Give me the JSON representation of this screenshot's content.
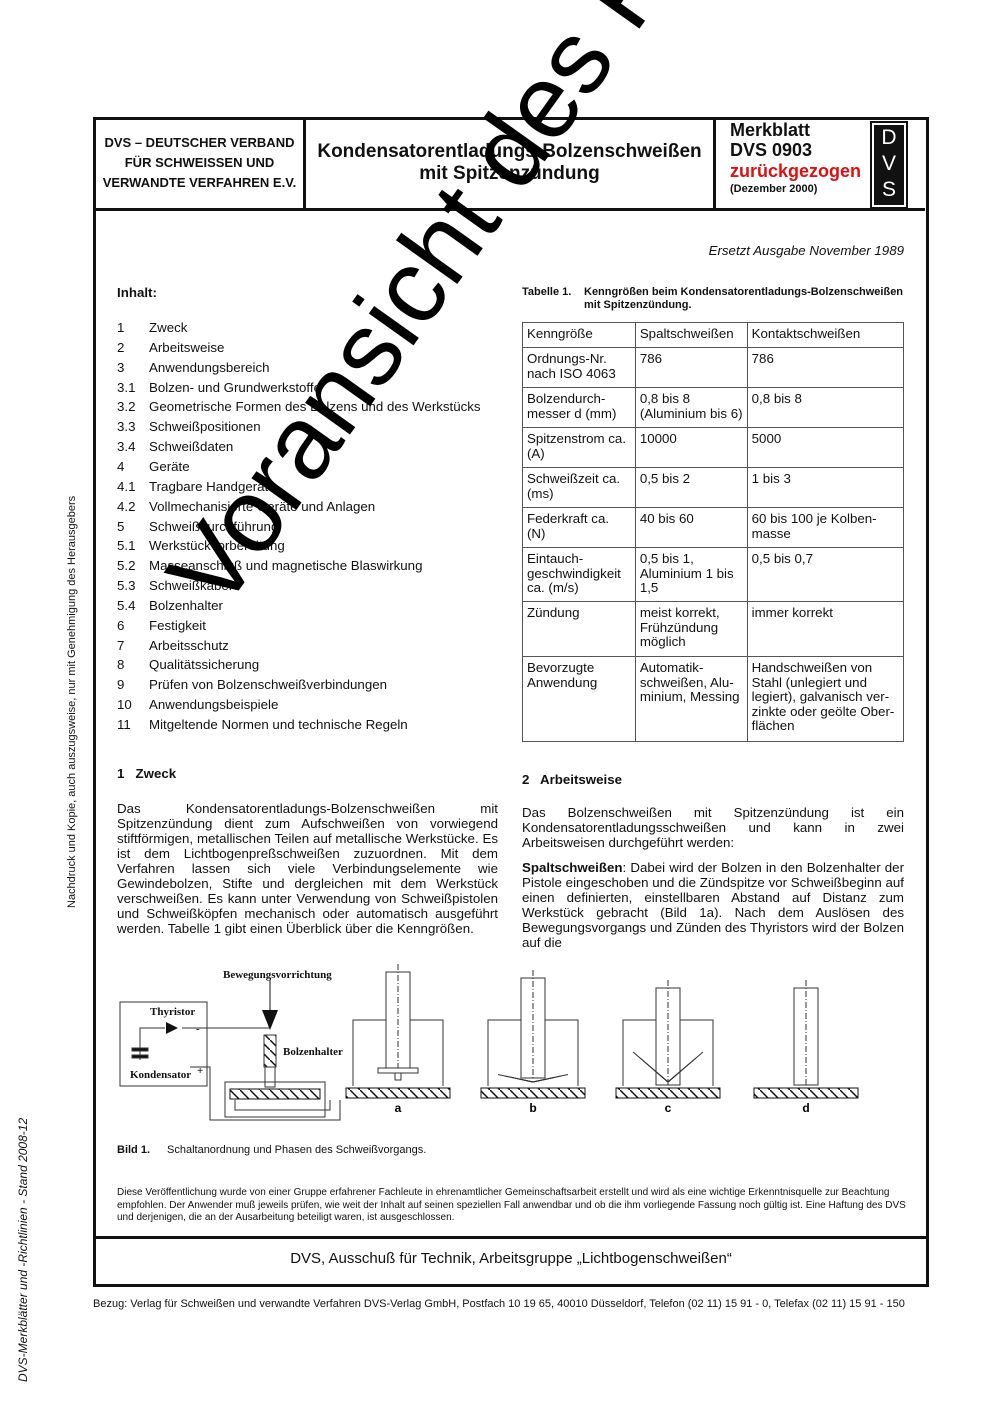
{
  "header": {
    "org": [
      "DVS – DEUTSCHER VERBAND",
      "FÜR SCHWEISSEN UND",
      "VERWANDTE VERFAHREN E.V."
    ],
    "title": [
      "Kondensatorentladungs-Bolzenschweißen",
      "mit Spitzenzündung"
    ],
    "merkblatt": "Merkblatt",
    "number": "DVS 0903",
    "date": "(Dezember 2000)",
    "stamp": "zurückgezogen",
    "logo": [
      "D",
      "V",
      "S"
    ],
    "stamp_color": "#e01010"
  },
  "replaces": "Ersetzt Ausgabe November 1989",
  "toc": {
    "title": "Inhalt:",
    "items": [
      {
        "num": "1",
        "label": "Zweck"
      },
      {
        "num": "2",
        "label": "Arbeitsweise"
      },
      {
        "num": "3",
        "label": "Anwendungsbereich"
      },
      {
        "num": "3.1",
        "label": "Bolzen- und Grundwerkstoffe"
      },
      {
        "num": "3.2",
        "label": "Geometrische Formen des Bolzens und des Werkstücks"
      },
      {
        "num": "3.3",
        "label": "Schweißpositionen"
      },
      {
        "num": "3.4",
        "label": "Schweißdaten"
      },
      {
        "num": "4",
        "label": "Geräte"
      },
      {
        "num": "4.1",
        "label": "Tragbare Handgeräte"
      },
      {
        "num": "4.2",
        "label": "Vollmechanisierte Geräte und Anlagen"
      },
      {
        "num": "5",
        "label": "Schweißdurchführung"
      },
      {
        "num": "5.1",
        "label": "Werkstückvorbereitung"
      },
      {
        "num": "5.2",
        "label": "Masseanschluß und magnetische Blaswirkung"
      },
      {
        "num": "5.3",
        "label": "Schweißkabel"
      },
      {
        "num": "5.4",
        "label": "Bolzenhalter"
      },
      {
        "num": "6",
        "label": "Festigkeit"
      },
      {
        "num": "7",
        "label": "Arbeitsschutz"
      },
      {
        "num": "8",
        "label": "Qualitätssicherung"
      },
      {
        "num": "9",
        "label": "Prüfen von Bolzenschweißverbindungen"
      },
      {
        "num": "10",
        "label": "Anwendungsbeispiele"
      },
      {
        "num": "11",
        "label": "Mitgeltende Normen und technische Regeln"
      }
    ]
  },
  "table": {
    "caption_label": "Tabelle 1.",
    "caption": "Kenngrößen beim Kondensatorentladungs-Bolzenschweißen mit Spitzenzündung.",
    "headers": [
      "Kenngröße",
      "Spaltschweißen",
      "Kontaktschweißen"
    ],
    "rows": [
      [
        "Ordnungs-Nr. nach ISO 4063",
        "786",
        "786"
      ],
      [
        "Bolzendurch­messer d (mm)",
        "0,8 bis 8 (Aluminium bis 6)",
        "0,8 bis 8"
      ],
      [
        "Spitzenstrom ca. (A)",
        "10000",
        "5000"
      ],
      [
        "Schweißzeit ca. (ms)",
        "0,5 bis 2",
        "1 bis 3"
      ],
      [
        "Federkraft ca. (N)",
        "40 bis 60",
        "60 bis 100 je Kolben­masse"
      ],
      [
        "Eintauch­geschwindigkeit ca. (m/s)",
        "0,5 bis 1, Aluminium 1 bis 1,5",
        "0,5 bis 0,7"
      ],
      [
        "Zündung",
        "meist korrekt, Frühzündung möglich",
        "immer korrekt"
      ],
      [
        "Bevorzugte Anwendung",
        "Automatik­schweißen, Alu­minium, Messing",
        "Handschweißen von Stahl (unlegiert und legiert), galvanisch ver­zinkte oder geölte Ober­flächen"
      ]
    ]
  },
  "section1": {
    "heading": "1   Zweck",
    "text": "Das Kondensatorentladungs-Bolzenschweißen mit Spitzenzündung dient zum Aufschweißen von vorwiegend stiftförmigen, metallischen Teilen auf metallische Werkstücke. Es ist dem Lichtbogenpreßschweißen zuzuordnen. Mit dem Verfahren lassen sich viele Verbindungselemente wie Gewindebolzen, Stifte und dergleichen mit dem Werkstück verschweißen. Es kann unter Verwendung von Schweißpistolen und Schweißköpfen mechanisch oder automatisch ausgeführt werden. Tabelle 1 gibt einen Überblick über die Kenngrößen."
  },
  "section2": {
    "heading": "2   Arbeitsweise",
    "text": "Das Bolzenschweißen mit Spitzenzündung ist ein Kondensatorentladungsschweißen und kann in zwei Arbeitsweisen durchgeführt werden:",
    "para_bold": "Spaltschweißen",
    "para": ": Dabei wird der Bolzen in den Bolzenhalter der Pistole eingeschoben und die Zündspitze vor Schweißbeginn auf einen definierten, einstellbaren Abstand auf Distanz zum Werkstück gebracht (Bild 1a). Nach dem Auslösen des Bewegungsvorgangs und Zünden des Thyristors wird der Bolzen auf die"
  },
  "figure": {
    "labels": {
      "motion": "Bewegungsvorrichtung",
      "thyristor": "Thyristor",
      "capacitor": "Kondensator",
      "holder": "Bolzenhalter",
      "minus": "-",
      "plus": "+"
    },
    "phases": [
      "a",
      "b",
      "c",
      "d"
    ],
    "caption_label": "Bild 1.",
    "caption": "Schaltanordnung und Phasen des Schweißvorgangs."
  },
  "disclaimer": "Diese Veröffentlichung wurde von einer Gruppe erfahrener Fachleute in ehrenamtlicher Gemeinschaftsarbeit erstellt und wird als eine wichtige Erkenntnisquelle zur Beachtung empfohlen. Der Anwender muß jeweils prüfen, wie weit der Inhalt auf seinen speziellen Fall anwendbar und ob die ihm vorliegende Fassung noch gültig ist. Eine Haftung des DVS und derjenigen, die an der Ausarbeitung beteiligt waren, ist ausgeschlossen.",
  "committee": "DVS, Ausschuß für Technik, Arbeitsgruppe „Lichtbogenschweißen“",
  "bezug": "Bezug:  Verlag für Schweißen und verwandte Verfahren DVS-Verlag  GmbH, Postfach 10 19 65, 40010 Düsseldorf, Telefon (02 11) 15 91 - 0, Telefax (02 11) 15 91 - 150",
  "side_copyright": "Nachdruck und Kopie, auch auszugsweise, nur mit Genehmigung des Herausgebers",
  "side_status": "DVS-Merkblätter und -Richtlinien - Stand 2008-12",
  "watermark": "Voransicht des Regelwerkes"
}
